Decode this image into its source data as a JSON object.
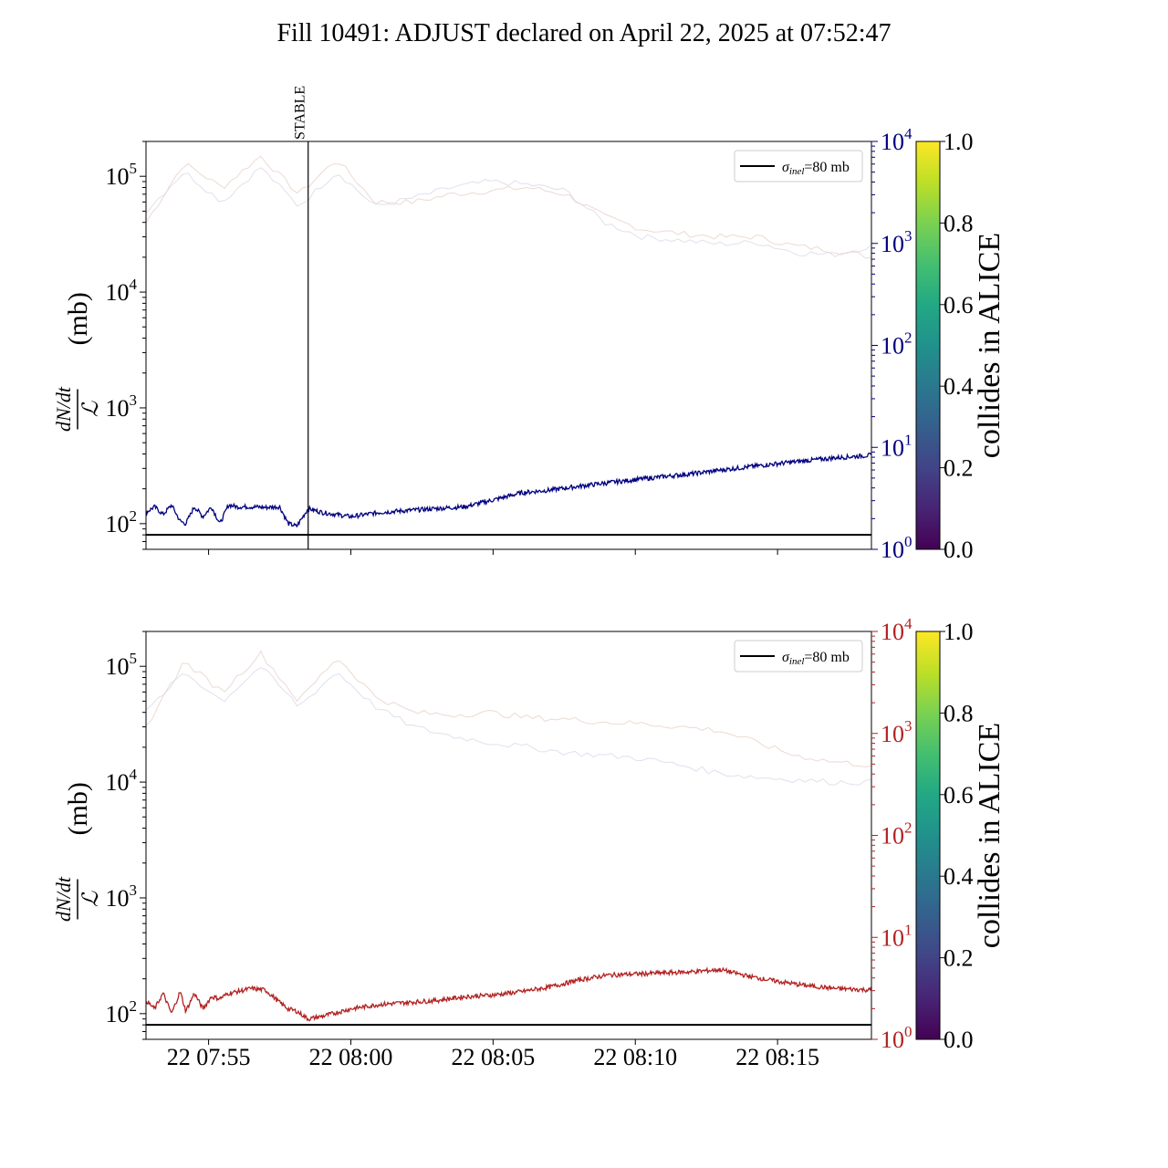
{
  "title": "Fill 10491: ADJUST declared on April 22, 2025 at 07:52:47",
  "colors": {
    "upper_series": "#00007f",
    "lower_series": "#b22222",
    "reference": "#000000",
    "upper_right_axis": "#00007f",
    "lower_right_axis": "#b22222"
  },
  "chart_data": [
    {
      "type": "line",
      "panel": "top",
      "ylabel_num": "dN/dt",
      "ylabel_den": "ℒ",
      "ylabel_unit": "(mb)",
      "yscale": "log",
      "ylim": [
        60,
        200000
      ],
      "y_ticks": [
        "10",
        "10",
        "10",
        "10"
      ],
      "y_tick_exp": [
        "2",
        "3",
        "4",
        "5"
      ],
      "right_yscale": "log",
      "right_ylim": [
        1,
        10000
      ],
      "right_ticks": [
        "10",
        "10",
        "10",
        "10",
        "10"
      ],
      "right_tick_exp": [
        "0",
        "1",
        "2",
        "3",
        "4"
      ],
      "xlim_minutes": [
        -7.2,
        18.3
      ],
      "x_ticks": [
        "22 07:55",
        "22 08:00",
        "22 08:05",
        "22 08:10",
        "22 08:15"
      ],
      "x_tick_minutes": [
        -5,
        0,
        5,
        10,
        15
      ],
      "show_x_tick_labels": false,
      "vertical_line": {
        "label": "STABLE",
        "x_minutes": -1.5
      },
      "reference_line": {
        "y": 80
      },
      "legend": {
        "label": "σ",
        "sub": "inel",
        "suffix": "=80 mb",
        "position": "top-right"
      },
      "series": {
        "x_minutes": [
          -7.2,
          -6.9,
          -6.6,
          -6.3,
          -6.0,
          -5.8,
          -5.5,
          -5.2,
          -4.9,
          -4.6,
          -4.3,
          -4.0,
          -3.5,
          -3.0,
          -2.5,
          -2.2,
          -1.9,
          -1.5,
          -1.0,
          0,
          1,
          2,
          3,
          4,
          5,
          6,
          7,
          8,
          9,
          10,
          11,
          12,
          13,
          14,
          15,
          16,
          17,
          18.3
        ],
        "y": [
          125,
          140,
          120,
          145,
          105,
          100,
          140,
          115,
          140,
          100,
          145,
          140,
          140,
          138,
          140,
          100,
          95,
          135,
          125,
          115,
          125,
          130,
          135,
          140,
          160,
          185,
          195,
          210,
          225,
          240,
          255,
          270,
          290,
          310,
          330,
          350,
          370,
          390
        ]
      },
      "faint_series_y": [
        [
          40000,
          130000,
          80000,
          150000,
          70000,
          140000,
          60000,
          60000,
          70000,
          75000,
          80000,
          70000,
          45000,
          35000,
          32000,
          30000,
          30000,
          25000,
          23000,
          20000
        ],
        [
          50000,
          110000,
          60000,
          120000,
          55000,
          110000,
          55000,
          65000,
          80000,
          90000,
          85000,
          75000,
          40000,
          30000,
          28000,
          26000,
          27000,
          22000,
          21000,
          25000
        ]
      ]
    },
    {
      "type": "line",
      "panel": "bottom",
      "ylabel_num": "dN/dt",
      "ylabel_den": "ℒ",
      "ylabel_unit": "(mb)",
      "yscale": "log",
      "ylim": [
        60,
        200000
      ],
      "y_ticks": [
        "10",
        "10",
        "10",
        "10"
      ],
      "y_tick_exp": [
        "2",
        "3",
        "4",
        "5"
      ],
      "right_yscale": "log",
      "right_ylim": [
        1,
        10000
      ],
      "right_ticks": [
        "10",
        "10",
        "10",
        "10",
        "10"
      ],
      "right_tick_exp": [
        "0",
        "1",
        "2",
        "3",
        "4"
      ],
      "xlim_minutes": [
        -7.2,
        18.3
      ],
      "x_ticks": [
        "22 07:55",
        "22 08:00",
        "22 08:05",
        "22 08:10",
        "22 08:15"
      ],
      "x_tick_minutes": [
        -5,
        0,
        5,
        10,
        15
      ],
      "show_x_tick_labels": true,
      "reference_line": {
        "y": 80
      },
      "legend": {
        "label": "σ",
        "sub": "inel",
        "suffix": "=80 mb",
        "position": "top-right"
      },
      "series": {
        "x_minutes": [
          -7.2,
          -6.9,
          -6.6,
          -6.3,
          -6.0,
          -5.8,
          -5.5,
          -5.2,
          -4.9,
          -4.6,
          -4.3,
          -4.0,
          -3.5,
          -3.0,
          -2.5,
          -2.2,
          -1.9,
          -1.5,
          -1.0,
          0,
          1,
          2,
          3,
          4,
          5,
          6,
          7,
          8,
          9,
          10,
          11,
          12,
          13,
          14,
          15,
          16,
          17,
          18.3
        ],
        "y": [
          130,
          110,
          150,
          100,
          155,
          105,
          150,
          110,
          140,
          135,
          150,
          155,
          165,
          160,
          125,
          110,
          105,
          90,
          95,
          110,
          120,
          125,
          130,
          140,
          145,
          155,
          170,
          195,
          215,
          220,
          225,
          230,
          240,
          210,
          190,
          175,
          165,
          160
        ]
      },
      "faint_series_y": [
        [
          30000,
          110000,
          60000,
          130000,
          50000,
          120000,
          55000,
          40000,
          38000,
          40000,
          36000,
          35000,
          33000,
          32000,
          30000,
          28000,
          22000,
          17000,
          15000,
          14000
        ],
        [
          40000,
          90000,
          50000,
          100000,
          45000,
          90000,
          45000,
          30000,
          25000,
          22000,
          20000,
          18000,
          17000,
          16000,
          14000,
          12000,
          11000,
          10500,
          10000,
          10000
        ]
      ]
    }
  ],
  "colorbar": {
    "label": "collides in ALICE",
    "ticks": [
      "0.0",
      "0.2",
      "0.4",
      "0.6",
      "0.8",
      "1.0"
    ],
    "range": [
      0,
      1
    ]
  }
}
